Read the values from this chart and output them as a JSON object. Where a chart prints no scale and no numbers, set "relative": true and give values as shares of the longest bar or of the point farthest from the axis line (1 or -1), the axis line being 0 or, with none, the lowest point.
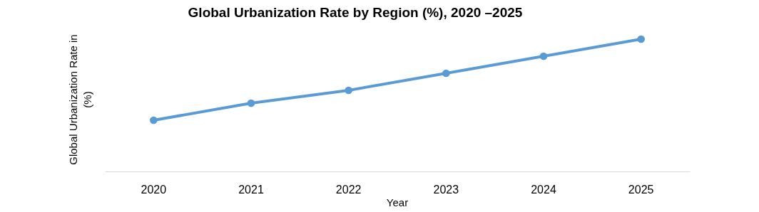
{
  "chart_data": {
    "type": "line",
    "title": "Global Urbanization Rate by Region (%), 2020 –2025",
    "xlabel": "Year",
    "ylabel": "Global Urbanization Rate in (%)",
    "relative": true,
    "categories": [
      "2020",
      "2021",
      "2022",
      "2023",
      "2024",
      "2025"
    ],
    "series": [
      {
        "color": "#5b9bd5",
        "values": [
          0.387,
          0.516,
          0.613,
          0.742,
          0.871,
          1
        ]
      }
    ],
    "marker": "circle",
    "grid": false
  }
}
